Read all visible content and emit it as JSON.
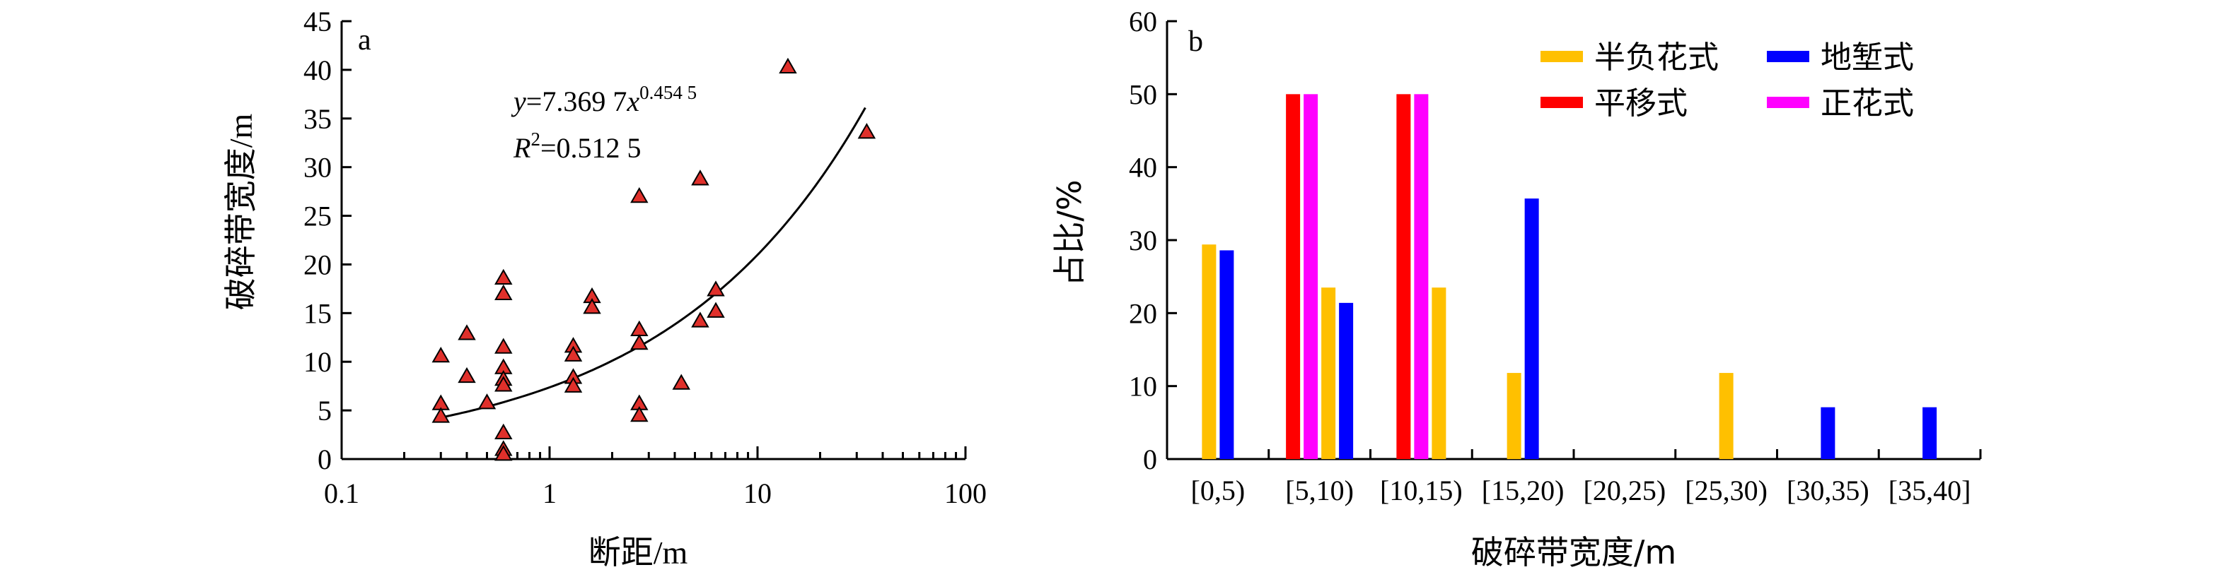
{
  "chart_data": [
    {
      "panel": "a",
      "type": "scatter",
      "xlabel_zh": "断距",
      "xlabel_unit": "/m",
      "ylabel_zh": "破碎带宽度",
      "ylabel_unit": "/m",
      "x_scale": "log",
      "xlim": [
        0.1,
        100
      ],
      "ylim": [
        0,
        45
      ],
      "x_ticks": [
        0.1,
        1,
        10,
        100
      ],
      "x_tick_labels": [
        "0.1",
        "1",
        "10",
        "100"
      ],
      "y_ticks": [
        0,
        5,
        10,
        15,
        20,
        25,
        30,
        35,
        40,
        45
      ],
      "y_tick_labels": [
        "0",
        "5",
        "10",
        "15",
        "20",
        "25",
        "30",
        "35",
        "40",
        "45"
      ],
      "marker_color": "#e0302b",
      "points": [
        {
          "x": 0.3,
          "y": 10.6
        },
        {
          "x": 0.3,
          "y": 5.7
        },
        {
          "x": 0.3,
          "y": 4.4
        },
        {
          "x": 0.4,
          "y": 12.9
        },
        {
          "x": 0.4,
          "y": 8.5
        },
        {
          "x": 0.5,
          "y": 5.8
        },
        {
          "x": 0.6,
          "y": 18.6
        },
        {
          "x": 0.6,
          "y": 17.0
        },
        {
          "x": 0.6,
          "y": 11.5
        },
        {
          "x": 0.6,
          "y": 9.4
        },
        {
          "x": 0.6,
          "y": 8.2
        },
        {
          "x": 0.6,
          "y": 7.6
        },
        {
          "x": 0.6,
          "y": 2.7
        },
        {
          "x": 0.6,
          "y": 1.0
        },
        {
          "x": 0.6,
          "y": 0.5
        },
        {
          "x": 1.3,
          "y": 11.6
        },
        {
          "x": 1.3,
          "y": 10.7
        },
        {
          "x": 1.3,
          "y": 8.4
        },
        {
          "x": 1.3,
          "y": 7.5
        },
        {
          "x": 1.6,
          "y": 16.7
        },
        {
          "x": 1.6,
          "y": 15.6
        },
        {
          "x": 2.7,
          "y": 27.0
        },
        {
          "x": 2.7,
          "y": 13.3
        },
        {
          "x": 2.7,
          "y": 11.9
        },
        {
          "x": 2.7,
          "y": 5.7
        },
        {
          "x": 2.7,
          "y": 4.5
        },
        {
          "x": 4.3,
          "y": 7.8
        },
        {
          "x": 5.3,
          "y": 28.8
        },
        {
          "x": 5.3,
          "y": 14.2
        },
        {
          "x": 6.3,
          "y": 17.4
        },
        {
          "x": 6.3,
          "y": 15.2
        },
        {
          "x": 14.0,
          "y": 40.3
        },
        {
          "x": 33.5,
          "y": 33.6
        }
      ],
      "fit": {
        "coef": 7.3697,
        "exponent": 0.4545,
        "x_range": [
          0.3,
          33.0
        ],
        "eq_y": "y",
        "eq_mid": "=7.369 7",
        "eq_x": "x",
        "eq_exp": "0.454 5",
        "r2_label": "R",
        "r2_sup": "2",
        "r2_value": "=0.512 5"
      }
    },
    {
      "panel": "b",
      "type": "bar",
      "xlabel": "破碎带宽度/m",
      "ylabel": "占比/%",
      "ylim": [
        0,
        60
      ],
      "y_ticks": [
        0,
        10,
        20,
        30,
        40,
        50,
        60
      ],
      "y_tick_labels": [
        "0",
        "10",
        "20",
        "30",
        "40",
        "50",
        "60"
      ],
      "categories": [
        "[0,5)",
        "[5,10)",
        "[10,15)",
        "[15,20)",
        "[20,25)",
        "[25,30)",
        "[30,35)",
        "[35,40]"
      ],
      "series": [
        {
          "name": "平移式",
          "color": "#ff0000",
          "values": [
            0,
            50,
            50,
            0,
            0,
            0,
            0,
            0
          ]
        },
        {
          "name": "正花式",
          "color": "#ff00ff",
          "values": [
            0,
            50,
            50,
            0,
            0,
            0,
            0,
            0
          ]
        },
        {
          "name": "半负花式",
          "color": "#ffc000",
          "values": [
            29.4,
            23.5,
            23.5,
            11.8,
            0,
            11.8,
            0,
            0
          ]
        },
        {
          "name": "地堑式",
          "color": "#0000ff",
          "values": [
            28.6,
            21.4,
            0,
            35.7,
            0,
            0,
            7.1,
            7.1
          ]
        }
      ],
      "legend_order": [
        "半负花式",
        "地堑式",
        "平移式",
        "正花式"
      ],
      "legend_placement": "top-right"
    }
  ]
}
